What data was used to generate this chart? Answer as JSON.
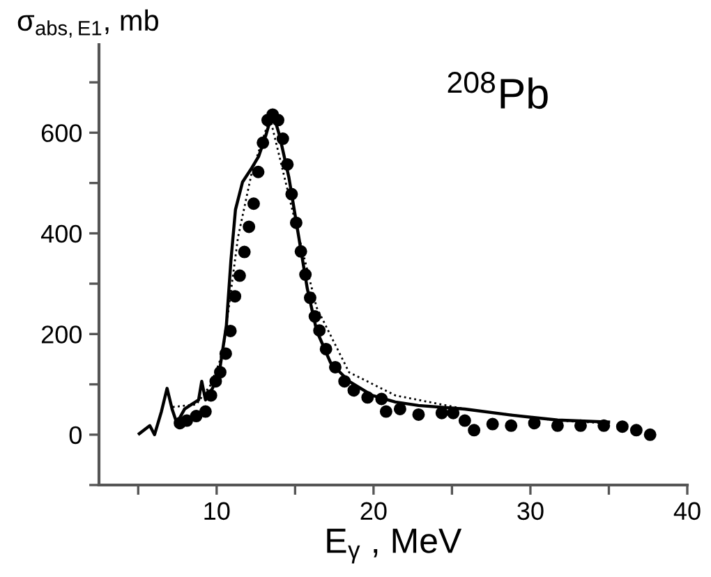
{
  "chart_data": {
    "type": "line",
    "xlabel": "E$_{γ}$ , MeV",
    "ylabel": "σ$_{abs,E1}$, mb",
    "annotations": [
      "$^{208}$Pb"
    ],
    "xlim": [
      2.5,
      40
    ],
    "ylim": [
      -100,
      775
    ],
    "xticks": [
      {
        "value": 5,
        "label": null
      },
      10,
      {
        "value": 15,
        "label": null
      },
      20,
      {
        "value": 25,
        "label": null
      },
      30,
      {
        "value": 35,
        "label": null
      },
      40
    ],
    "yticks": [
      {
        "value": -100,
        "label": null
      },
      0,
      {
        "value": 100,
        "label": null
      },
      200,
      {
        "value": 300,
        "label": null
      },
      400,
      {
        "value": 500,
        "label": null
      },
      600,
      {
        "value": 700,
        "label": null
      }
    ],
    "grid": false,
    "legend": false,
    "series": [
      {
        "line_style": "solid",
        "marker": "none",
        "color": "#000000",
        "x": [
          5.07,
          5.74,
          6.04,
          6.48,
          6.84,
          7.16,
          7.46,
          7.96,
          8.4,
          8.85,
          9.05,
          9.29,
          9.73,
          10.17,
          10.62,
          10.91,
          11.2,
          11.65,
          12.24,
          12.68,
          13.13,
          13.57,
          14.01,
          14.6,
          15.19,
          15.78,
          16.37,
          17.26,
          18.44,
          19.92,
          21.39,
          22.87,
          25.82,
          28.77,
          31.73,
          34.98
        ],
        "values": [
          2,
          18,
          0,
          46,
          92,
          51,
          23,
          51,
          60,
          69,
          106,
          69,
          92,
          124,
          217,
          346,
          447,
          502,
          530,
          553,
          594,
          641,
          594,
          512,
          401,
          290,
          207,
          143,
          106,
          78,
          65,
          58,
          51,
          39,
          29,
          25
        ]
      },
      {
        "line_style": "dotted",
        "marker": "none",
        "color": "#000000",
        "x": [
          7.2,
          8.7,
          9.58,
          10.17,
          10.47,
          11.36,
          12.24,
          13.4,
          15.04,
          16.37,
          18.44,
          21.39,
          25.82,
          31.73,
          34.7
        ],
        "values": [
          55,
          60,
          97,
          143,
          180,
          392,
          521,
          630,
          419,
          253,
          124,
          78,
          51,
          28,
          23
        ]
      },
      {
        "type": "scatter",
        "marker": "circle",
        "color": "#000000",
        "x": [
          7.66,
          8.1,
          8.7,
          9.29,
          9.64,
          9.94,
          10.23,
          10.58,
          10.88,
          11.17,
          11.47,
          11.77,
          12.06,
          12.36,
          12.65,
          12.95,
          13.25,
          13.57,
          13.92,
          14.22,
          14.51,
          14.78,
          15.07,
          15.37,
          15.66,
          15.96,
          16.26,
          16.55,
          16.97,
          17.56,
          18.15,
          18.74,
          19.62,
          20.51,
          20.8,
          21.69,
          22.87,
          24.35,
          25.08,
          25.82,
          26.41,
          27.59,
          28.77,
          30.25,
          31.73,
          33.2,
          34.68,
          35.86,
          36.75,
          37.63
        ],
        "values": [
          23,
          28,
          37,
          46,
          78,
          106,
          124,
          161,
          206,
          275,
          316,
          363,
          413,
          459,
          522,
          580,
          625,
          636,
          625,
          588,
          537,
          478,
          421,
          364,
          318,
          272,
          235,
          207,
          170,
          134,
          106,
          88,
          74,
          71,
          46,
          51,
          40,
          43,
          43,
          28,
          9,
          21,
          18,
          23,
          18,
          18,
          18,
          16,
          9,
          0
        ]
      }
    ]
  }
}
